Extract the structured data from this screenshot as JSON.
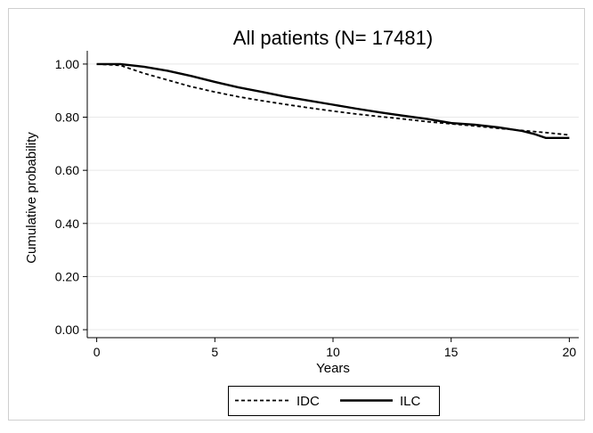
{
  "chart_data": {
    "type": "line",
    "title": "All patients (N= 17481)",
    "xlabel": "Years",
    "ylabel": "Cumulative probability",
    "xlim": [
      -0.4,
      20.4
    ],
    "ylim": [
      -0.03,
      1.05
    ],
    "xticks": [
      0,
      5,
      10,
      15,
      20
    ],
    "xtick_labels": [
      "0",
      "5",
      "10",
      "15",
      "20"
    ],
    "yticks": [
      0,
      0.2,
      0.4,
      0.6,
      0.8,
      1.0
    ],
    "ytick_labels": [
      "0.00",
      "0.20",
      "0.40",
      "0.60",
      "0.80",
      "1.00"
    ],
    "grid": true,
    "legend_position": "bottom",
    "series": [
      {
        "name": "IDC",
        "style": "dashed",
        "color": "#000000",
        "x": [
          0,
          1,
          2,
          3,
          4,
          5,
          6,
          7,
          8,
          9,
          10,
          11,
          12,
          13,
          14,
          15,
          16,
          17,
          18,
          19,
          20
        ],
        "y": [
          1.0,
          0.995,
          0.965,
          0.94,
          0.915,
          0.895,
          0.877,
          0.862,
          0.848,
          0.835,
          0.823,
          0.812,
          0.802,
          0.793,
          0.783,
          0.775,
          0.767,
          0.758,
          0.75,
          0.742,
          0.733
        ]
      },
      {
        "name": "ILC",
        "style": "solid",
        "color": "#000000",
        "x": [
          0,
          1,
          2,
          3,
          4,
          5,
          6,
          7,
          8,
          9,
          10,
          11,
          12,
          13,
          14,
          15,
          16,
          17,
          18,
          18.5,
          19,
          19.5,
          20
        ],
        "y": [
          1.0,
          1.0,
          0.99,
          0.975,
          0.955,
          0.933,
          0.912,
          0.895,
          0.877,
          0.862,
          0.847,
          0.832,
          0.818,
          0.805,
          0.793,
          0.778,
          0.772,
          0.762,
          0.748,
          0.737,
          0.722,
          0.722,
          0.722
        ]
      }
    ]
  }
}
